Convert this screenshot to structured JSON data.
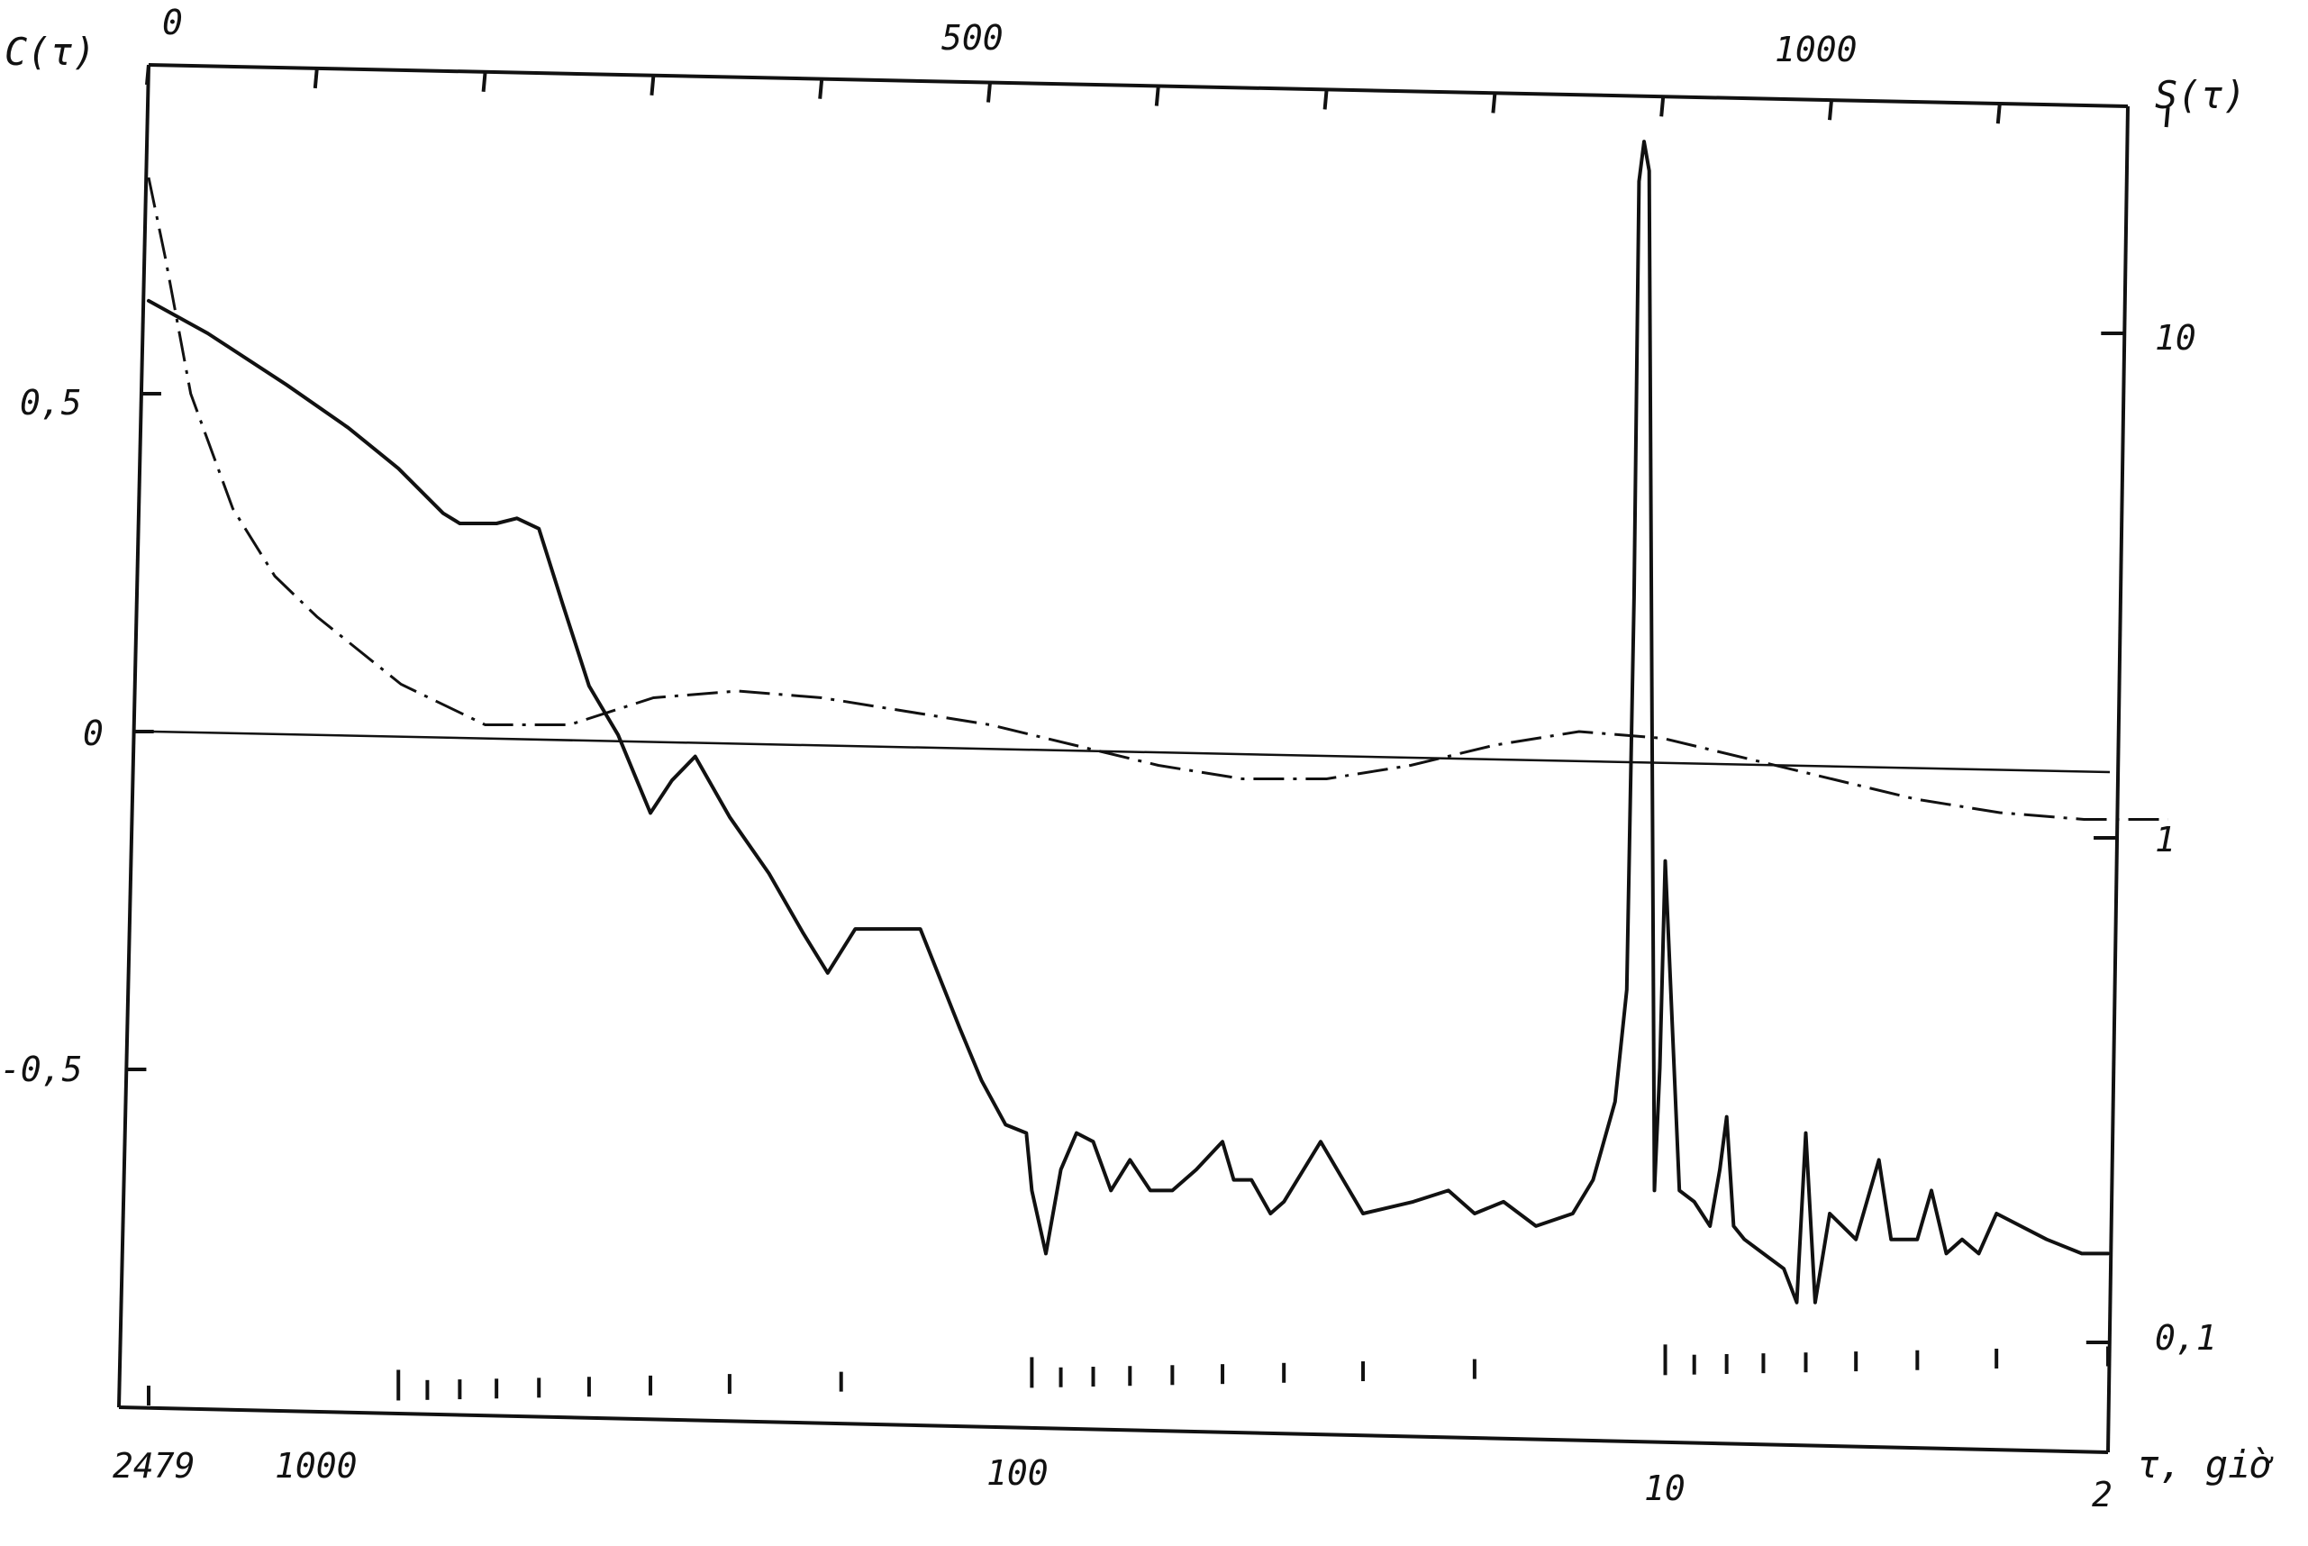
{
  "chart_data": {
    "type": "line",
    "title": "",
    "labels": {
      "left_axis": "C(τ)",
      "right_axis": "S(τ)",
      "bottom_axis": "τ, giờ"
    },
    "top_axis": {
      "ticks": [
        0,
        100,
        200,
        300,
        400,
        500,
        600,
        700,
        800,
        900,
        1000,
        1100,
        1200
      ],
      "labels": [
        "0",
        "500",
        "1000"
      ]
    },
    "left_axis": {
      "ticks": [
        0.5,
        0,
        -0.5
      ],
      "labels": [
        "0,5",
        "0",
        "-0,5"
      ]
    },
    "right_axis": {
      "scale": "log",
      "ticks": [
        10,
        1,
        0.1
      ],
      "labels": [
        "10",
        "1",
        "0,1"
      ]
    },
    "bottom_axis": {
      "scale": "log-period",
      "ticks": [
        2479,
        1000,
        900,
        800,
        700,
        600,
        500,
        400,
        300,
        200,
        100,
        90,
        80,
        70,
        60,
        50,
        40,
        30,
        20,
        10,
        9,
        8,
        7,
        6,
        5,
        4,
        3,
        2
      ],
      "labels": [
        "2479",
        "1000",
        "100",
        "10",
        "2"
      ]
    },
    "series": [
      {
        "name": "",
        "axis": "left",
        "style": "dash-dot",
        "x": [
          0,
          10,
          25,
          50,
          75,
          100,
          150,
          200,
          250,
          300,
          350,
          400,
          450,
          500,
          550,
          600,
          650,
          700,
          750,
          800,
          850,
          900,
          950,
          1000,
          1050,
          1100,
          1150,
          1200
        ],
        "y": [
          0.82,
          0.7,
          0.5,
          0.33,
          0.23,
          0.17,
          0.07,
          0.01,
          0.01,
          0.05,
          0.06,
          0.05,
          0.03,
          0.01,
          -0.02,
          -0.05,
          -0.07,
          -0.07,
          -0.05,
          -0.02,
          0.0,
          -0.01,
          -0.04,
          -0.07,
          -0.1,
          -0.12,
          -0.13,
          -0.13
        ]
      },
      {
        "name": "",
        "axis": "right",
        "style": "solid",
        "x": [
          2479,
          2000,
          1500,
          1200,
          1000,
          850,
          800,
          700,
          650,
          600,
          550,
          500,
          450,
          400,
          370,
          340,
          300,
          260,
          230,
          210,
          190,
          170,
          150,
          130,
          120,
          110,
          102,
          100,
          95,
          90,
          85,
          80,
          75,
          70,
          65,
          60,
          55,
          50,
          48,
          45,
          42,
          40,
          35,
          30,
          25,
          22,
          20,
          18,
          16,
          14,
          13,
          12,
          11.5,
          11.2,
          11,
          10.8,
          10.6,
          10.4,
          10.2,
          10,
          9.5,
          9,
          8.5,
          8.2,
          8,
          7.8,
          7.5,
          7,
          6.5,
          6.2,
          6,
          5.8,
          5.5,
          5,
          4.6,
          4.4,
          4.2,
          4,
          3.8,
          3.6,
          3.4,
          3.2,
          3,
          2.5,
          2.2,
          2
        ],
        "y": [
          11.6,
          10.0,
          7.9,
          6.5,
          5.4,
          4.4,
          4.2,
          4.2,
          4.3,
          4.1,
          2.9,
          2.0,
          1.6,
          1.12,
          1.3,
          1.45,
          1.1,
          0.85,
          0.65,
          0.54,
          0.66,
          0.66,
          0.66,
          0.42,
          0.33,
          0.27,
          0.26,
          0.2,
          0.15,
          0.22,
          0.26,
          0.25,
          0.2,
          0.23,
          0.2,
          0.2,
          0.22,
          0.25,
          0.21,
          0.21,
          0.18,
          0.19,
          0.25,
          0.18,
          0.19,
          0.2,
          0.18,
          0.19,
          0.17,
          0.18,
          0.21,
          0.3,
          0.5,
          3.0,
          20.0,
          24.0,
          21.0,
          0.2,
          0.35,
          0.9,
          0.2,
          0.19,
          0.17,
          0.22,
          0.28,
          0.17,
          0.16,
          0.15,
          0.14,
          0.12,
          0.26,
          0.12,
          0.18,
          0.16,
          0.23,
          0.16,
          0.16,
          0.16,
          0.2,
          0.15,
          0.16,
          0.15,
          0.18,
          0.16,
          0.15,
          0.15
        ]
      }
    ]
  }
}
